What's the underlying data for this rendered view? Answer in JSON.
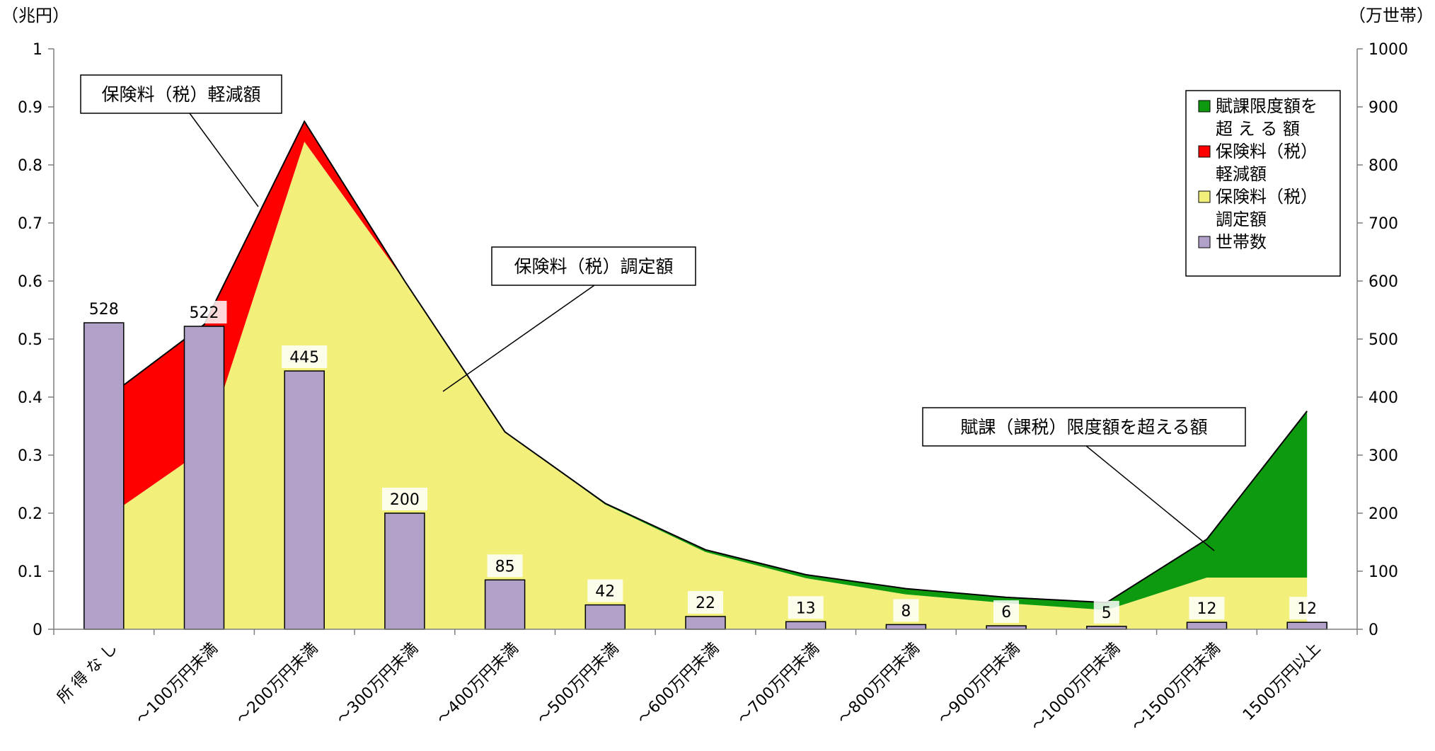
{
  "chart_data": {
    "type": "area",
    "y_left_unit": "（兆円）",
    "y_right_unit": "（万世帯）",
    "y_left_ticks": [
      "0",
      "0.1",
      "0.2",
      "0.3",
      "0.4",
      "0.5",
      "0.6",
      "0.7",
      "0.8",
      "0.9",
      "1"
    ],
    "y_right_ticks": [
      "0",
      "100",
      "200",
      "300",
      "400",
      "500",
      "600",
      "700",
      "800",
      "900",
      "1000"
    ],
    "ylim_left": [
      0,
      1
    ],
    "ylim_right": [
      0,
      1000
    ],
    "categories": [
      "所 得 な し",
      "～100万円未満",
      "～200万円未満",
      "～300万円未満",
      "～400万円未満",
      "～500万円未満",
      "～600万円未満",
      "～700万円未満",
      "～800万円未満",
      "～900万円未満",
      "～1000万円未満",
      "～1500万円未満",
      "1500万円以上"
    ],
    "series": [
      {
        "name": "保険料（税）調定額",
        "axis": "left",
        "kind": "stacked-area",
        "color": "#f2f07a",
        "values": [
          0.19,
          0.31,
          0.84,
          0.6,
          0.34,
          0.215,
          0.133,
          0.088,
          0.06,
          0.045,
          0.033,
          0.089,
          0.089
        ]
      },
      {
        "name": "保険料（税）軽減額",
        "axis": "left",
        "kind": "stacked-area",
        "color": "#ff0000",
        "values": [
          0.205,
          0.215,
          0.035,
          0.0,
          0.0,
          0.0,
          0.0,
          0.0,
          0.0,
          0.0,
          0.0,
          0.0,
          0.0
        ]
      },
      {
        "name": "賦課限度額を超える額",
        "axis": "left",
        "kind": "stacked-area",
        "color": "#0e9a0e",
        "values": [
          0.0,
          0.0,
          0.0,
          0.0,
          0.0,
          0.002,
          0.004,
          0.006,
          0.01,
          0.01,
          0.013,
          0.066,
          0.287
        ]
      },
      {
        "name": "世帯数",
        "axis": "right",
        "kind": "bar",
        "color": "#b1a0c7",
        "values": [
          528,
          522,
          445,
          200,
          85,
          42,
          22,
          13,
          8,
          6,
          5,
          12,
          12
        ]
      }
    ],
    "grid": false,
    "legend": {
      "placement": "top-right",
      "entries": [
        {
          "lines": [
            "賦課限度額を",
            "超 え る 額"
          ],
          "color": "#0e9a0e"
        },
        {
          "lines": [
            "保険料（税）",
            "軽減額"
          ],
          "color": "#ff0000"
        },
        {
          "lines": [
            "保険料（税）",
            "調定額"
          ],
          "color": "#f2f07a"
        },
        {
          "lines": [
            "世帯数"
          ],
          "color": "#b1a0c7"
        }
      ]
    },
    "annotations": [
      {
        "text": "保険料（税）軽減額"
      },
      {
        "text": "保険料（税）調定額"
      },
      {
        "text": "賦課（課税）限度額を超える額"
      }
    ]
  }
}
